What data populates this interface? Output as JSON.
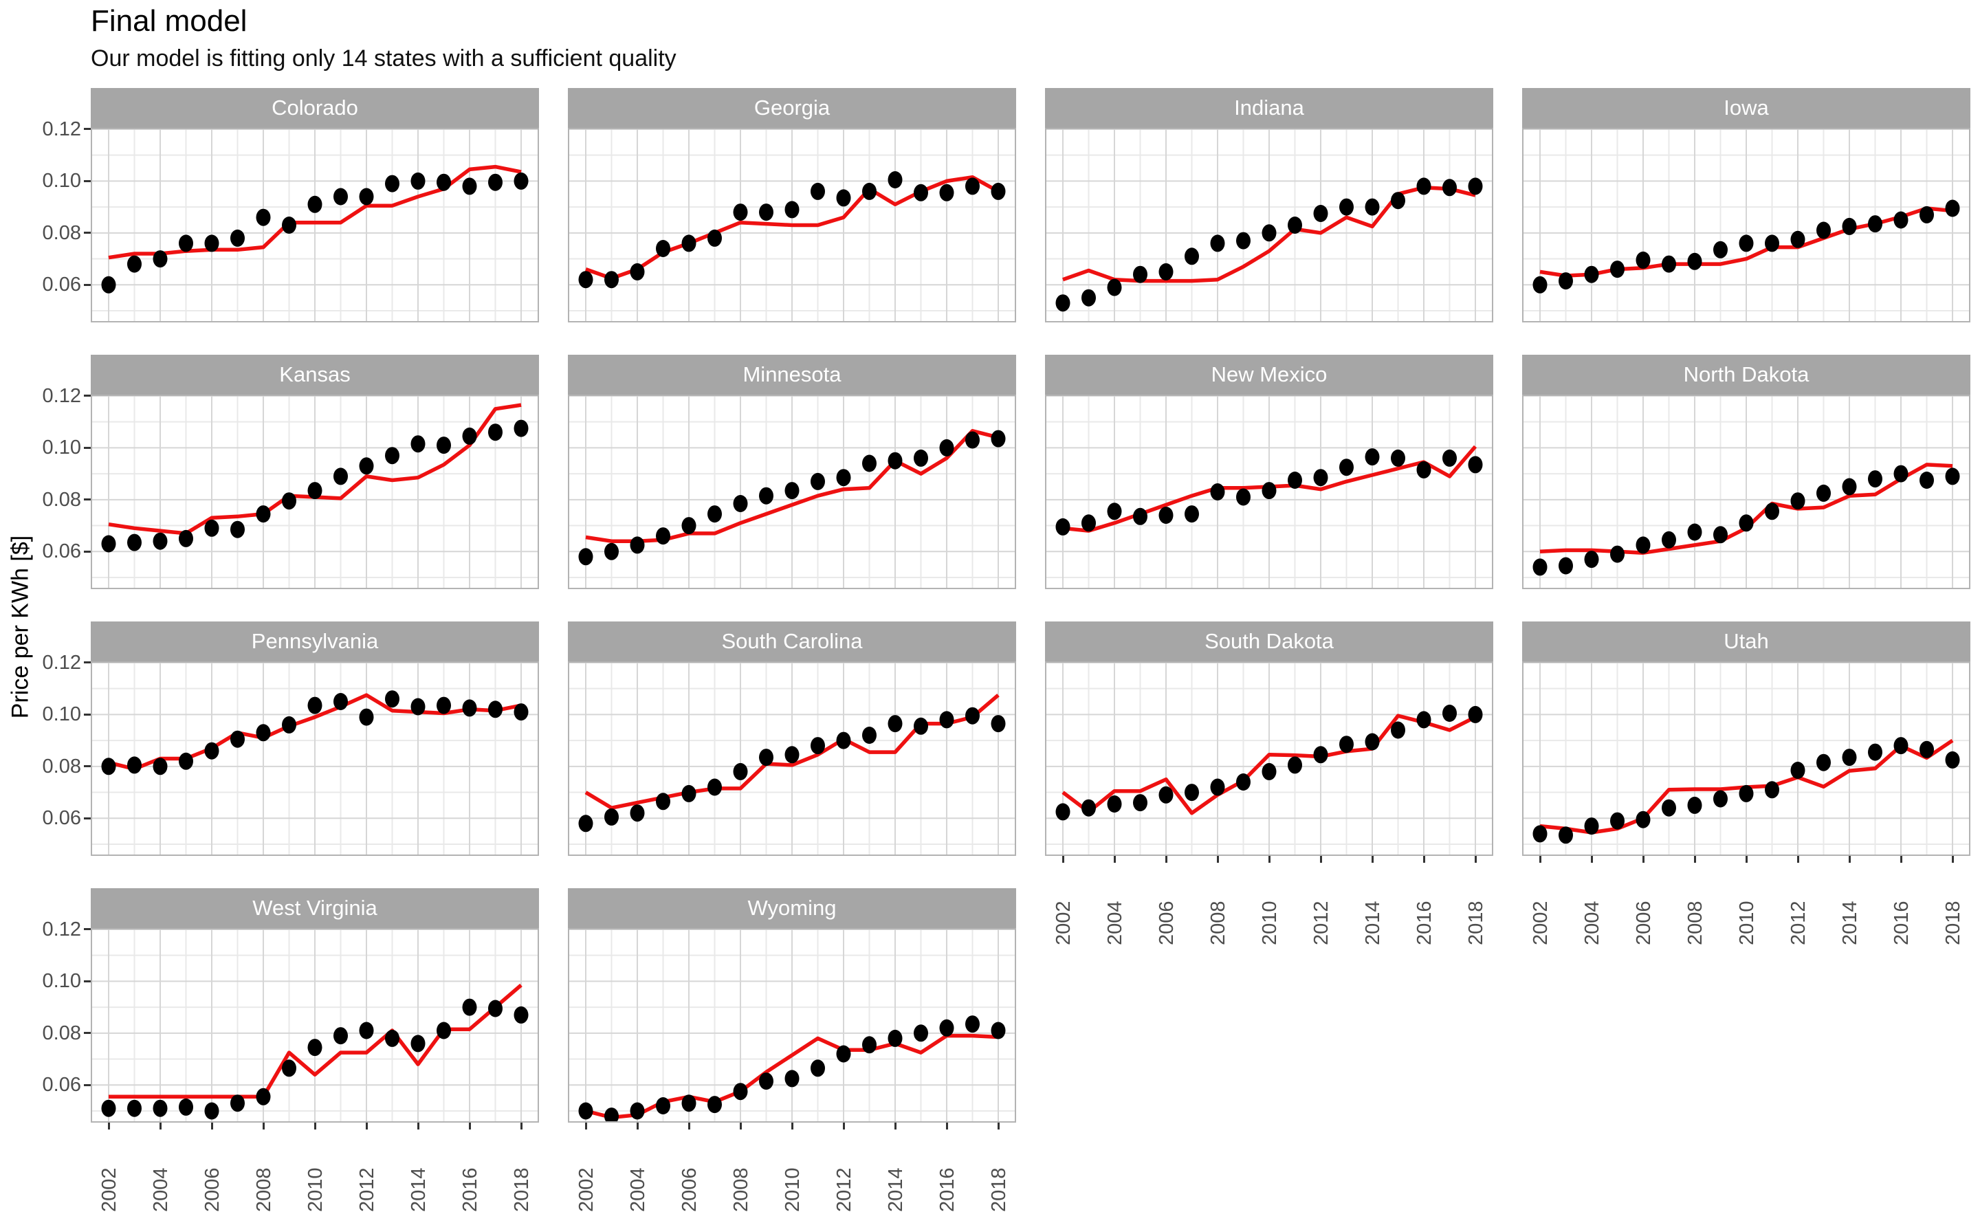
{
  "title": "Final model",
  "subtitle": "Our model is fitting only 14 states with a sufficient quality",
  "y_axis_title": "Price per KWh [$]",
  "colors": {
    "model_line": "#ee1111",
    "observed_dot": "#000000",
    "strip_bg": "#a6a6a6",
    "strip_text": "#ffffff",
    "grid_major": "#d6d6d6",
    "grid_minor": "#e9e9e9",
    "panel_border": "#b3b3b3",
    "tick_text": "#4d4d4d",
    "panel_bg": "#ffffff"
  },
  "chart_data": {
    "type": "scatter",
    "facet_layout": "4 columns, 14 facets",
    "x": [
      2002,
      2003,
      2004,
      2005,
      2006,
      2007,
      2008,
      2009,
      2010,
      2011,
      2012,
      2013,
      2014,
      2015,
      2016,
      2017,
      2018
    ],
    "x_tick_labels": [
      "2002",
      "2004",
      "2006",
      "2008",
      "2010",
      "2012",
      "2014",
      "2016",
      "2018"
    ],
    "y_tick_labels": [
      "0.06",
      "0.08",
      "0.10",
      "0.12"
    ],
    "y_ticks": [
      0.06,
      0.08,
      0.1,
      0.12
    ],
    "ylim": [
      0.0455,
      0.1205
    ],
    "xlabel": "",
    "ylabel": "Price per KWh [$]",
    "grid": "major and minor, both axes",
    "legend": "none",
    "series_legend": {
      "observed": "black points",
      "model": "red line"
    },
    "facets": [
      {
        "state": "Colorado",
        "observed": [
          0.06,
          0.068,
          0.07,
          0.076,
          0.076,
          0.078,
          0.086,
          0.083,
          0.091,
          0.094,
          0.094,
          0.099,
          0.1,
          0.0995,
          0.098,
          0.0995,
          0.1
        ],
        "model": [
          0.0705,
          0.072,
          0.072,
          0.073,
          0.0735,
          0.0735,
          0.0745,
          0.084,
          0.084,
          0.084,
          0.0905,
          0.0905,
          0.094,
          0.097,
          0.1045,
          0.1055,
          0.1035
        ]
      },
      {
        "state": "Georgia",
        "observed": [
          0.062,
          0.062,
          0.065,
          0.074,
          0.076,
          0.078,
          0.088,
          0.088,
          0.089,
          0.096,
          0.0935,
          0.096,
          0.1005,
          0.0955,
          0.0955,
          0.098,
          0.096
        ],
        "model": [
          0.066,
          0.0625,
          0.066,
          0.0725,
          0.076,
          0.08,
          0.084,
          0.0835,
          0.083,
          0.083,
          0.086,
          0.097,
          0.091,
          0.096,
          0.1,
          0.1015,
          0.096
        ]
      },
      {
        "state": "Indiana",
        "observed": [
          0.053,
          0.055,
          0.059,
          0.064,
          0.065,
          0.071,
          0.076,
          0.077,
          0.08,
          0.083,
          0.0875,
          0.09,
          0.09,
          0.0925,
          0.098,
          0.0975,
          0.098
        ],
        "model": [
          0.062,
          0.0655,
          0.062,
          0.0615,
          0.0615,
          0.0615,
          0.062,
          0.067,
          0.073,
          0.0815,
          0.08,
          0.086,
          0.0825,
          0.095,
          0.0975,
          0.097,
          0.0945
        ]
      },
      {
        "state": "Iowa",
        "observed": [
          0.06,
          0.0615,
          0.064,
          0.066,
          0.0695,
          0.068,
          0.069,
          0.0735,
          0.076,
          0.076,
          0.0775,
          0.081,
          0.0825,
          0.0835,
          0.085,
          0.087,
          0.0895
        ],
        "model": [
          0.065,
          0.0635,
          0.064,
          0.066,
          0.0665,
          0.068,
          0.068,
          0.068,
          0.07,
          0.0745,
          0.0745,
          0.078,
          0.0815,
          0.0835,
          0.0862,
          0.0895,
          0.0885
        ]
      },
      {
        "state": "Kansas",
        "observed": [
          0.063,
          0.0635,
          0.064,
          0.065,
          0.069,
          0.0685,
          0.0745,
          0.0795,
          0.0835,
          0.089,
          0.093,
          0.097,
          0.1015,
          0.101,
          0.1045,
          0.106,
          0.1075
        ],
        "model": [
          0.0705,
          0.069,
          0.068,
          0.067,
          0.073,
          0.0735,
          0.0745,
          0.0815,
          0.081,
          0.0805,
          0.089,
          0.0875,
          0.0885,
          0.0935,
          0.101,
          0.115,
          0.1165
        ]
      },
      {
        "state": "Minnesota",
        "observed": [
          0.058,
          0.06,
          0.0625,
          0.066,
          0.07,
          0.0745,
          0.0785,
          0.0815,
          0.0835,
          0.087,
          0.0885,
          0.094,
          0.095,
          0.096,
          0.1,
          0.103,
          0.1035
        ],
        "model": [
          0.0655,
          0.064,
          0.064,
          0.0645,
          0.067,
          0.067,
          0.071,
          0.0745,
          0.078,
          0.0815,
          0.084,
          0.0845,
          0.095,
          0.09,
          0.096,
          0.1065,
          0.104
        ]
      },
      {
        "state": "New Mexico",
        "observed": [
          0.0695,
          0.071,
          0.0755,
          0.0735,
          0.074,
          0.0745,
          0.083,
          0.081,
          0.0835,
          0.0875,
          0.0885,
          0.0925,
          0.0965,
          0.096,
          0.0915,
          0.096,
          0.0935
        ],
        "model": [
          0.069,
          0.068,
          0.071,
          0.0745,
          0.078,
          0.0815,
          0.0845,
          0.0845,
          0.085,
          0.0855,
          0.084,
          0.087,
          0.0895,
          0.092,
          0.0945,
          0.089,
          0.1005
        ]
      },
      {
        "state": "North Dakota",
        "observed": [
          0.054,
          0.0545,
          0.057,
          0.059,
          0.0625,
          0.0645,
          0.0675,
          0.0665,
          0.071,
          0.0755,
          0.0795,
          0.0825,
          0.085,
          0.088,
          0.09,
          0.0875,
          0.089
        ],
        "model": [
          0.06,
          0.0605,
          0.0605,
          0.06,
          0.0595,
          0.061,
          0.0625,
          0.064,
          0.069,
          0.0785,
          0.0765,
          0.077,
          0.0815,
          0.082,
          0.088,
          0.0935,
          0.093
        ]
      },
      {
        "state": "Pennsylvania",
        "observed": [
          0.08,
          0.0805,
          0.08,
          0.082,
          0.086,
          0.0905,
          0.093,
          0.096,
          0.1035,
          0.105,
          0.099,
          0.106,
          0.103,
          0.1035,
          0.1025,
          0.102,
          0.101
        ],
        "model": [
          0.0815,
          0.079,
          0.083,
          0.083,
          0.087,
          0.093,
          0.091,
          0.0955,
          0.099,
          0.103,
          0.1075,
          0.1015,
          0.101,
          0.1005,
          0.102,
          0.1015,
          0.1035
        ]
      },
      {
        "state": "South Carolina",
        "observed": [
          0.058,
          0.0605,
          0.062,
          0.0665,
          0.0695,
          0.072,
          0.078,
          0.0835,
          0.0845,
          0.088,
          0.09,
          0.092,
          0.0965,
          0.0955,
          0.098,
          0.0995,
          0.0965
        ],
        "model": [
          0.07,
          0.064,
          0.066,
          0.068,
          0.07,
          0.0715,
          0.0715,
          0.081,
          0.0805,
          0.0845,
          0.0905,
          0.0855,
          0.0855,
          0.0965,
          0.0965,
          0.099,
          0.1075
        ]
      },
      {
        "state": "South Dakota",
        "observed": [
          0.0625,
          0.064,
          0.0655,
          0.066,
          0.069,
          0.07,
          0.072,
          0.074,
          0.078,
          0.0805,
          0.0845,
          0.0885,
          0.0895,
          0.094,
          0.098,
          0.1005,
          0.1
        ],
        "model": [
          0.07,
          0.0625,
          0.0705,
          0.0705,
          0.075,
          0.062,
          0.069,
          0.0745,
          0.0845,
          0.0843,
          0.0838,
          0.0858,
          0.0868,
          0.0995,
          0.097,
          0.094,
          0.099
        ]
      },
      {
        "state": "Utah",
        "observed": [
          0.054,
          0.0535,
          0.057,
          0.059,
          0.0595,
          0.064,
          0.065,
          0.0675,
          0.0695,
          0.071,
          0.0785,
          0.0815,
          0.0835,
          0.0855,
          0.088,
          0.0865,
          0.0825
        ],
        "model": [
          0.057,
          0.056,
          0.0545,
          0.056,
          0.06,
          0.071,
          0.0712,
          0.0712,
          0.072,
          0.0725,
          0.0758,
          0.0722,
          0.0783,
          0.0792,
          0.0879,
          0.0833,
          0.09
        ]
      },
      {
        "state": "West Virginia",
        "observed": [
          0.051,
          0.051,
          0.051,
          0.0515,
          0.05,
          0.053,
          0.0555,
          0.0665,
          0.0745,
          0.079,
          0.081,
          0.078,
          0.076,
          0.081,
          0.09,
          0.0895,
          0.087
        ],
        "model": [
          0.0555,
          0.0555,
          0.0555,
          0.0555,
          0.0555,
          0.0555,
          0.0555,
          0.0725,
          0.064,
          0.0725,
          0.0725,
          0.081,
          0.068,
          0.0815,
          0.0815,
          0.09,
          0.0985
        ]
      },
      {
        "state": "Wyoming",
        "observed": [
          0.05,
          0.048,
          0.05,
          0.052,
          0.053,
          0.0525,
          0.0575,
          0.0615,
          0.0625,
          0.0665,
          0.072,
          0.0755,
          0.078,
          0.08,
          0.082,
          0.0835,
          0.081
        ],
        "model": [
          0.05,
          0.0475,
          0.0485,
          0.0535,
          0.0555,
          0.0535,
          0.0575,
          0.065,
          0.0715,
          0.078,
          0.0735,
          0.0735,
          0.076,
          0.0725,
          0.079,
          0.079,
          0.0785
        ]
      }
    ]
  }
}
